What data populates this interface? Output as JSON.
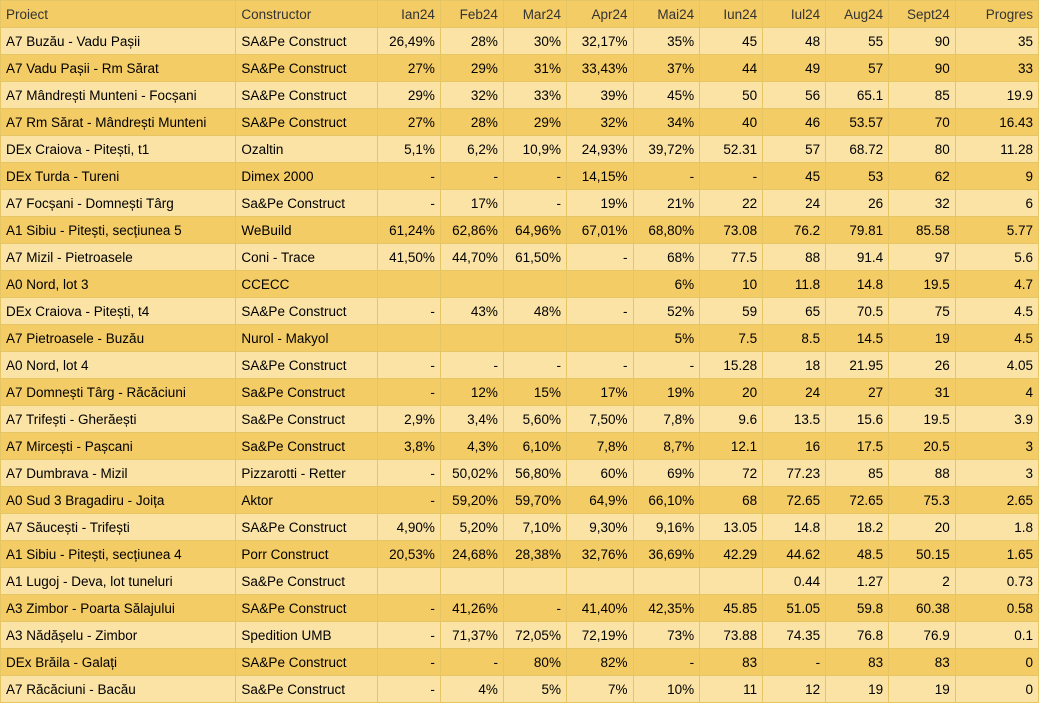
{
  "columns": [
    "Proiect",
    "Constructor",
    "Ian24",
    "Feb24",
    "Mar24",
    "Apr24",
    "Mai24",
    "Iun24",
    "Iul24",
    "Aug24",
    "Sept24",
    "Progres"
  ],
  "numeric_cols": [
    2,
    3,
    4,
    5,
    6,
    7,
    8,
    9,
    10,
    11
  ],
  "rows": [
    [
      "A7 Buzău - Vadu Pașii",
      "SA&Pe Construct",
      "26,49%",
      "28%",
      "30%",
      "32,17%",
      "35%",
      "45",
      "48",
      "55",
      "90",
      "35"
    ],
    [
      "A7 Vadu Pașii - Rm Sărat",
      "SA&Pe Construct",
      "27%",
      "29%",
      "31%",
      "33,43%",
      "37%",
      "44",
      "49",
      "57",
      "90",
      "33"
    ],
    [
      "A7 Mândrești Munteni - Focșani",
      "SA&Pe Construct",
      "29%",
      "32%",
      "33%",
      "39%",
      "45%",
      "50",
      "56",
      "65.1",
      "85",
      "19.9"
    ],
    [
      "A7 Rm Sărat - Mândrești Munteni",
      "SA&Pe Construct",
      "27%",
      "28%",
      "29%",
      "32%",
      "34%",
      "40",
      "46",
      "53.57",
      "70",
      "16.43"
    ],
    [
      "DEx Craiova - Pitești, t1",
      "Ozaltin",
      "5,1%",
      "6,2%",
      "10,9%",
      "24,93%",
      "39,72%",
      "52.31",
      "57",
      "68.72",
      "80",
      "11.28"
    ],
    [
      "DEx Turda - Tureni",
      "Dimex 2000",
      "-",
      "-",
      "-",
      "14,15%",
      "-",
      "-",
      "45",
      "53",
      "62",
      "9"
    ],
    [
      "A7 Focșani - Domnești Târg",
      "Sa&Pe Construct",
      "-",
      "17%",
      "-",
      "19%",
      "21%",
      "22",
      "24",
      "26",
      "32",
      "6"
    ],
    [
      "A1 Sibiu - Pitești, secțiunea 5",
      "WeBuild",
      "61,24%",
      "62,86%",
      "64,96%",
      "67,01%",
      "68,80%",
      "73.08",
      "76.2",
      "79.81",
      "85.58",
      "5.77"
    ],
    [
      "A7 Mizil - Pietroasele",
      "Coni - Trace",
      "41,50%",
      "44,70%",
      "61,50%",
      "-",
      "68%",
      "77.5",
      "88",
      "91.4",
      "97",
      "5.6"
    ],
    [
      "A0 Nord, lot 3",
      "CCECC",
      "",
      "",
      "",
      "",
      "6%",
      "10",
      "11.8",
      "14.8",
      "19.5",
      "4.7"
    ],
    [
      "DEx Craiova - Pitești, t4",
      "SA&Pe Construct",
      "-",
      "43%",
      "48%",
      "-",
      "52%",
      "59",
      "65",
      "70.5",
      "75",
      "4.5"
    ],
    [
      "A7 Pietroasele - Buzău",
      "Nurol - Makyol",
      "",
      "",
      "",
      "",
      "5%",
      "7.5",
      "8.5",
      "14.5",
      "19",
      "4.5"
    ],
    [
      "A0 Nord, lot 4",
      "SA&Pe Construct",
      "-",
      "-",
      "-",
      "-",
      "-",
      "15.28",
      "18",
      "21.95",
      "26",
      "4.05"
    ],
    [
      "A7 Domnești Târg - Răcăciuni",
      "Sa&Pe Construct",
      "-",
      "12%",
      "15%",
      "17%",
      "19%",
      "20",
      "24",
      "27",
      "31",
      "4"
    ],
    [
      "A7 Trifești - Gherăești",
      "Sa&Pe Construct",
      "2,9%",
      "3,4%",
      "5,60%",
      "7,50%",
      "7,8%",
      "9.6",
      "13.5",
      "15.6",
      "19.5",
      "3.9"
    ],
    [
      "A7 Mircești - Pașcani",
      "Sa&Pe Construct",
      "3,8%",
      "4,3%",
      "6,10%",
      "7,8%",
      "8,7%",
      "12.1",
      "16",
      "17.5",
      "20.5",
      "3"
    ],
    [
      "A7 Dumbrava - Mizil",
      "Pizzarotti - Retter",
      "-",
      "50,02%",
      "56,80%",
      "60%",
      "69%",
      "72",
      "77.23",
      "85",
      "88",
      "3"
    ],
    [
      "A0 Sud 3 Bragadiru - Joița",
      "Aktor",
      "-",
      "59,20%",
      "59,70%",
      "64,9%",
      "66,10%",
      "68",
      "72.65",
      "72.65",
      "75.3",
      "2.65"
    ],
    [
      "A7 Săucești - Trifești",
      "SA&Pe Construct",
      "4,90%",
      "5,20%",
      "7,10%",
      "9,30%",
      "9,16%",
      "13.05",
      "14.8",
      "18.2",
      "20",
      "1.8"
    ],
    [
      "A1 Sibiu - Pitești, secțiunea 4",
      "Porr Construct",
      "20,53%",
      "24,68%",
      "28,38%",
      "32,76%",
      "36,69%",
      "42.29",
      "44.62",
      "48.5",
      "50.15",
      "1.65"
    ],
    [
      "A1 Lugoj - Deva, lot tuneluri",
      "Sa&Pe Construct",
      "",
      "",
      "",
      "",
      "",
      "",
      "0.44",
      "1.27",
      "2",
      "0.73"
    ],
    [
      "A3 Zimbor - Poarta Sălajului",
      "SA&Pe Construct",
      "-",
      "41,26%",
      "-",
      "41,40%",
      "42,35%",
      "45.85",
      "51.05",
      "59.8",
      "60.38",
      "0.58"
    ],
    [
      "A3 Nădășelu - Zimbor",
      "Spedition UMB",
      "-",
      "71,37%",
      "72,05%",
      "72,19%",
      "73%",
      "73.88",
      "74.35",
      "76.8",
      "76.9",
      "0.1"
    ],
    [
      "DEx Brăila - Galați",
      "SA&Pe Construct",
      "-",
      "-",
      "80%",
      "82%",
      "-",
      "83",
      "-",
      "83",
      "83",
      "0"
    ],
    [
      "A7 Răcăciuni - Bacău",
      "Sa&Pe Construct",
      "-",
      "4%",
      "5%",
      "7%",
      "10%",
      "11",
      "12",
      "19",
      "19",
      "0"
    ]
  ]
}
